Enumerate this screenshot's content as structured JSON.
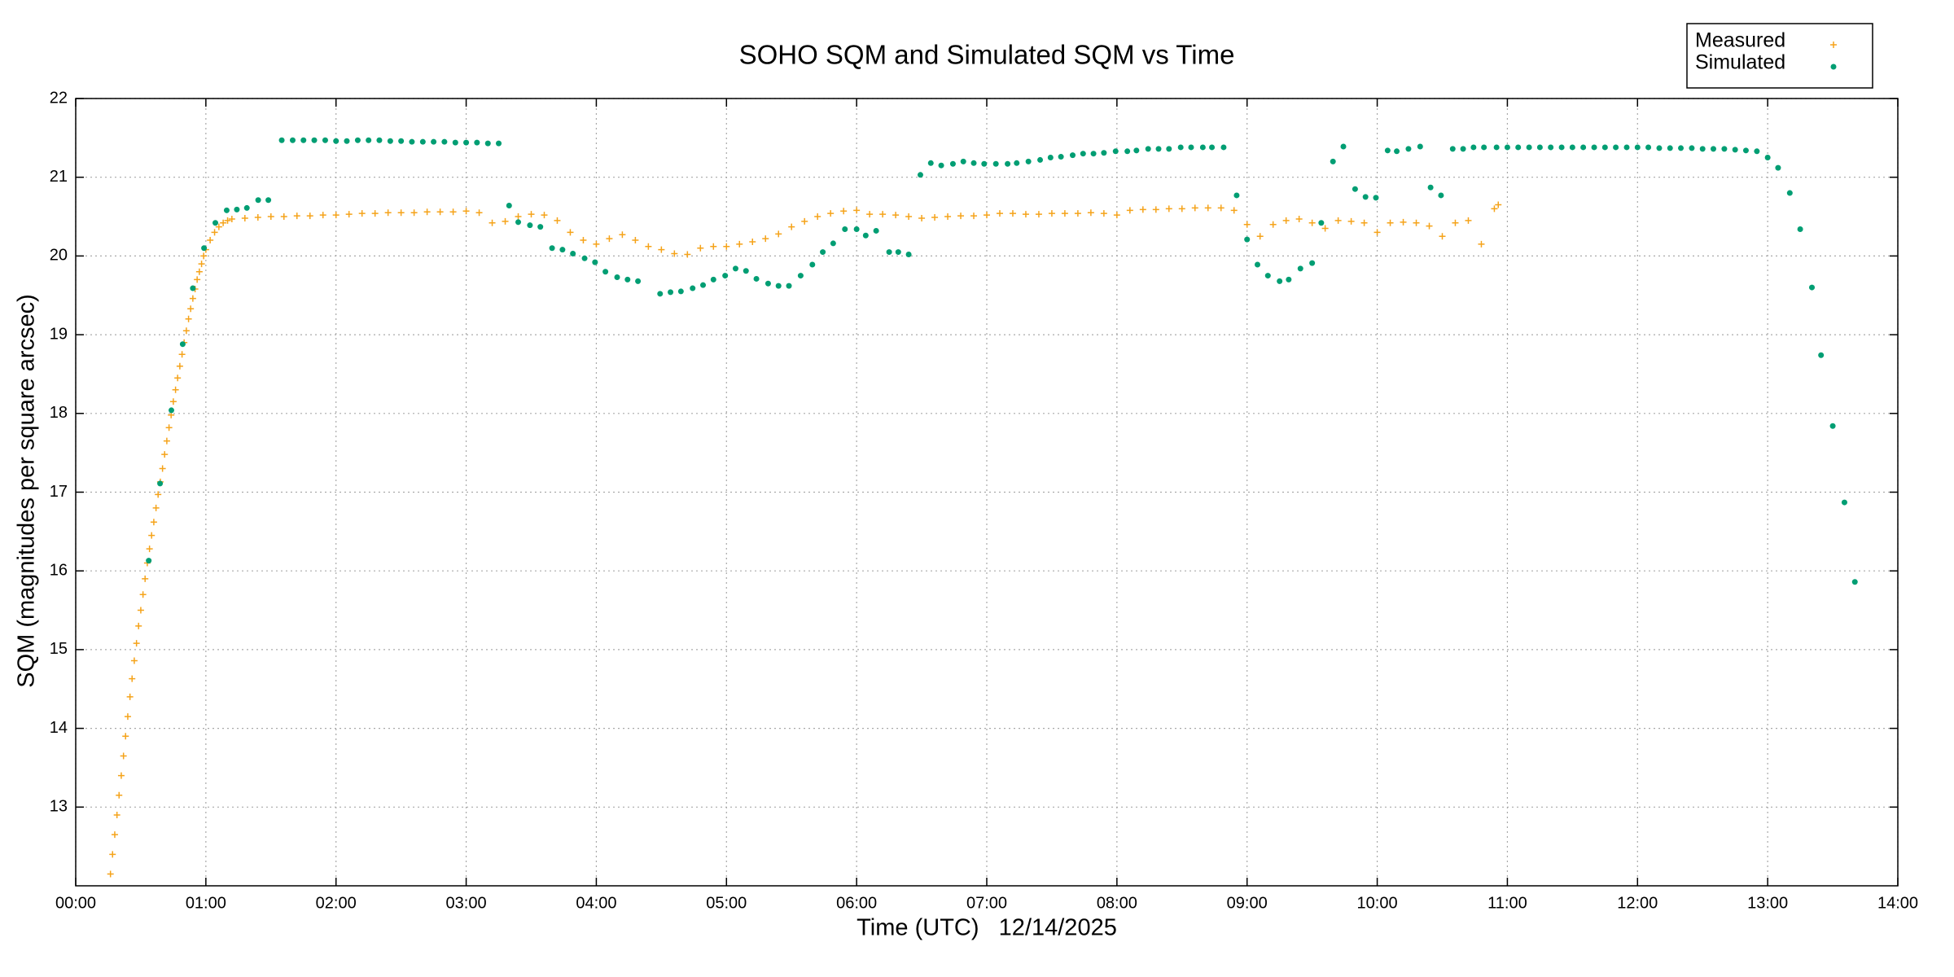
{
  "chart_data": {
    "type": "scatter",
    "title": "SOHO SQM and Simulated SQM vs Time",
    "x_label": "Time (UTC)   12/14/2025",
    "y_label": "SQM (magnitudes per square arcsec)",
    "xlim": [
      0,
      14
    ],
    "xticks": [
      {
        "value": 0,
        "label": "00:00"
      },
      {
        "value": 1,
        "label": "01:00"
      },
      {
        "value": 2,
        "label": "02:00"
      },
      {
        "value": 3,
        "label": "03:00"
      },
      {
        "value": 4,
        "label": "04:00"
      },
      {
        "value": 5,
        "label": "05:00"
      },
      {
        "value": 6,
        "label": "06:00"
      },
      {
        "value": 7,
        "label": "07:00"
      },
      {
        "value": 8,
        "label": "08:00"
      },
      {
        "value": 9,
        "label": "09:00"
      },
      {
        "value": 10,
        "label": "10:00"
      },
      {
        "value": 11,
        "label": "11:00"
      },
      {
        "value": 12,
        "label": "12:00"
      },
      {
        "value": 13,
        "label": "13:00"
      },
      {
        "value": 14,
        "label": "14:00"
      }
    ],
    "ylim": [
      12,
      22
    ],
    "yticks": [
      13,
      14,
      15,
      16,
      17,
      18,
      19,
      20,
      21,
      22
    ],
    "grid": true,
    "legend": "top-right",
    "axis_label_color": "#009e73",
    "series": [
      {
        "name": "Measured",
        "color": "#f5a31a",
        "marker": "plus",
        "x": [
          0.267,
          0.283,
          0.3,
          0.317,
          0.333,
          0.35,
          0.367,
          0.383,
          0.4,
          0.417,
          0.433,
          0.45,
          0.467,
          0.483,
          0.5,
          0.517,
          0.533,
          0.55,
          0.567,
          0.583,
          0.6,
          0.617,
          0.633,
          0.65,
          0.667,
          0.683,
          0.7,
          0.717,
          0.733,
          0.75,
          0.767,
          0.783,
          0.8,
          0.817,
          0.833,
          0.85,
          0.867,
          0.883,
          0.9,
          0.917,
          0.933,
          0.95,
          0.967,
          0.983,
          1.0,
          1.033,
          1.067,
          1.1,
          1.133,
          1.167,
          1.2,
          1.3,
          1.4,
          1.5,
          1.6,
          1.7,
          1.8,
          1.9,
          2.0,
          2.1,
          2.2,
          2.3,
          2.4,
          2.5,
          2.6,
          2.7,
          2.8,
          2.9,
          3.0,
          3.1,
          3.2,
          3.3,
          3.4,
          3.5,
          3.6,
          3.7,
          3.8,
          3.9,
          4.0,
          4.1,
          4.2,
          4.3,
          4.4,
          4.5,
          4.6,
          4.7,
          4.8,
          4.9,
          5.0,
          5.1,
          5.2,
          5.3,
          5.4,
          5.5,
          5.6,
          5.7,
          5.8,
          5.9,
          6.0,
          6.1,
          6.2,
          6.3,
          6.4,
          6.5,
          6.6,
          6.7,
          6.8,
          6.9,
          7.0,
          7.1,
          7.2,
          7.3,
          7.4,
          7.5,
          7.6,
          7.7,
          7.8,
          7.9,
          8.0,
          8.1,
          8.2,
          8.3,
          8.4,
          8.5,
          8.6,
          8.7,
          8.8,
          8.9,
          9.0,
          9.1,
          9.2,
          9.3,
          9.4,
          9.5,
          9.6,
          9.7,
          9.8,
          9.9,
          10.0,
          10.1,
          10.2,
          10.3,
          10.4,
          10.5,
          10.6,
          10.7,
          10.8,
          10.9,
          10.93
        ],
        "values": [
          12.15,
          12.4,
          12.65,
          12.9,
          13.15,
          13.4,
          13.65,
          13.9,
          14.15,
          14.4,
          14.63,
          14.86,
          15.08,
          15.3,
          15.5,
          15.7,
          15.9,
          16.1,
          16.28,
          16.45,
          16.62,
          16.8,
          16.97,
          17.13,
          17.3,
          17.48,
          17.65,
          17.82,
          17.98,
          18.15,
          18.3,
          18.45,
          18.6,
          18.75,
          18.9,
          19.05,
          19.2,
          19.33,
          19.46,
          19.58,
          19.7,
          19.8,
          19.9,
          20.0,
          20.08,
          20.2,
          20.3,
          20.37,
          20.42,
          20.45,
          20.47,
          20.48,
          20.49,
          20.5,
          20.5,
          20.51,
          20.51,
          20.52,
          20.52,
          20.53,
          20.54,
          20.54,
          20.55,
          20.55,
          20.55,
          20.56,
          20.56,
          20.56,
          20.57,
          20.55,
          20.42,
          20.44,
          20.5,
          20.53,
          20.52,
          20.45,
          20.3,
          20.2,
          20.15,
          20.22,
          20.27,
          20.2,
          20.12,
          20.08,
          20.03,
          20.02,
          20.1,
          20.12,
          20.12,
          20.15,
          20.18,
          20.22,
          20.28,
          20.37,
          20.44,
          20.5,
          20.54,
          20.57,
          20.58,
          20.53,
          20.53,
          20.52,
          20.5,
          20.48,
          20.49,
          20.5,
          20.51,
          20.51,
          20.52,
          20.54,
          20.54,
          20.53,
          20.53,
          20.54,
          20.54,
          20.54,
          20.55,
          20.54,
          20.52,
          20.58,
          20.59,
          20.59,
          20.6,
          20.6,
          20.61,
          20.61,
          20.61,
          20.58,
          20.4,
          20.25,
          20.4,
          20.45,
          20.47,
          20.42,
          20.35,
          20.45,
          20.44,
          20.42,
          20.3,
          20.42,
          20.43,
          20.42,
          20.38,
          20.25,
          20.42,
          20.45,
          20.15,
          20.6,
          20.65
        ]
      },
      {
        "name": "Simulated",
        "color": "#009e73",
        "marker": "dot",
        "x": [
          0.561,
          0.648,
          0.735,
          0.822,
          0.9,
          0.986,
          1.073,
          1.16,
          1.238,
          1.315,
          1.402,
          1.48,
          1.583,
          1.667,
          1.75,
          1.833,
          1.917,
          2.0,
          2.083,
          2.167,
          2.25,
          2.333,
          2.417,
          2.5,
          2.583,
          2.667,
          2.75,
          2.833,
          2.917,
          3.0,
          3.083,
          3.167,
          3.25,
          3.33,
          3.4,
          3.49,
          3.57,
          3.66,
          3.74,
          3.82,
          3.91,
          3.99,
          4.07,
          4.16,
          4.24,
          4.32,
          4.49,
          4.57,
          4.65,
          4.74,
          4.82,
          4.9,
          4.99,
          5.07,
          5.15,
          5.23,
          5.32,
          5.4,
          5.48,
          5.57,
          5.66,
          5.74,
          5.82,
          5.91,
          6.0,
          6.07,
          6.15,
          6.25,
          6.32,
          6.4,
          6.49,
          6.57,
          6.65,
          6.74,
          6.82,
          6.9,
          6.98,
          7.07,
          7.16,
          7.23,
          7.32,
          7.41,
          7.49,
          7.57,
          7.66,
          7.74,
          7.82,
          7.9,
          7.99,
          8.08,
          8.15,
          8.24,
          8.32,
          8.4,
          8.49,
          8.57,
          8.66,
          8.73,
          8.82,
          8.92,
          9.0,
          9.08,
          9.16,
          9.25,
          9.32,
          9.41,
          9.5,
          9.57,
          9.66,
          9.74,
          9.83,
          9.91,
          9.99,
          10.08,
          10.15,
          10.24,
          10.33,
          10.41,
          10.49,
          10.58,
          10.66,
          10.74,
          10.82,
          10.917,
          11.0,
          11.083,
          11.167,
          11.25,
          11.333,
          11.417,
          11.5,
          11.583,
          11.667,
          11.75,
          11.833,
          11.917,
          12.0,
          12.083,
          12.167,
          12.25,
          12.333,
          12.417,
          12.5,
          12.583,
          12.667,
          12.75,
          12.833,
          12.917,
          13.0,
          13.08,
          13.17,
          13.25,
          13.34,
          13.41,
          13.5,
          13.59,
          13.67
        ],
        "values": [
          16.13,
          17.11,
          18.04,
          18.88,
          19.59,
          20.1,
          20.42,
          20.58,
          20.59,
          20.61,
          20.71,
          20.71,
          21.47,
          21.47,
          21.47,
          21.47,
          21.47,
          21.46,
          21.46,
          21.47,
          21.47,
          21.47,
          21.46,
          21.46,
          21.45,
          21.45,
          21.45,
          21.45,
          21.44,
          21.44,
          21.44,
          21.43,
          21.43,
          20.64,
          20.43,
          20.39,
          20.37,
          20.1,
          20.08,
          20.03,
          19.97,
          19.92,
          19.8,
          19.73,
          19.7,
          19.68,
          19.52,
          19.54,
          19.55,
          19.59,
          19.63,
          19.7,
          19.75,
          19.84,
          19.81,
          19.71,
          19.65,
          19.62,
          19.62,
          19.75,
          19.89,
          20.05,
          20.16,
          20.34,
          20.34,
          20.26,
          20.32,
          20.05,
          20.05,
          20.02,
          21.03,
          21.18,
          21.15,
          21.17,
          21.2,
          21.18,
          21.17,
          21.17,
          21.17,
          21.18,
          21.2,
          21.22,
          21.25,
          21.26,
          21.28,
          21.3,
          21.3,
          21.31,
          21.33,
          21.33,
          21.34,
          21.36,
          21.36,
          21.36,
          21.38,
          21.38,
          21.38,
          21.38,
          21.38,
          20.77,
          20.21,
          19.89,
          19.75,
          19.68,
          19.7,
          19.84,
          19.91,
          20.42,
          21.2,
          21.39,
          20.85,
          20.75,
          20.74,
          21.34,
          21.33,
          21.36,
          21.39,
          20.87,
          20.77,
          21.36,
          21.36,
          21.38,
          21.38,
          21.38,
          21.38,
          21.38,
          21.38,
          21.38,
          21.38,
          21.38,
          21.38,
          21.38,
          21.38,
          21.38,
          21.38,
          21.38,
          21.38,
          21.38,
          21.37,
          21.37,
          21.37,
          21.37,
          21.36,
          21.36,
          21.36,
          21.35,
          21.34,
          21.33,
          21.25,
          21.12,
          20.8,
          20.34,
          19.6,
          18.74,
          17.84,
          16.87,
          15.86
        ]
      }
    ]
  }
}
